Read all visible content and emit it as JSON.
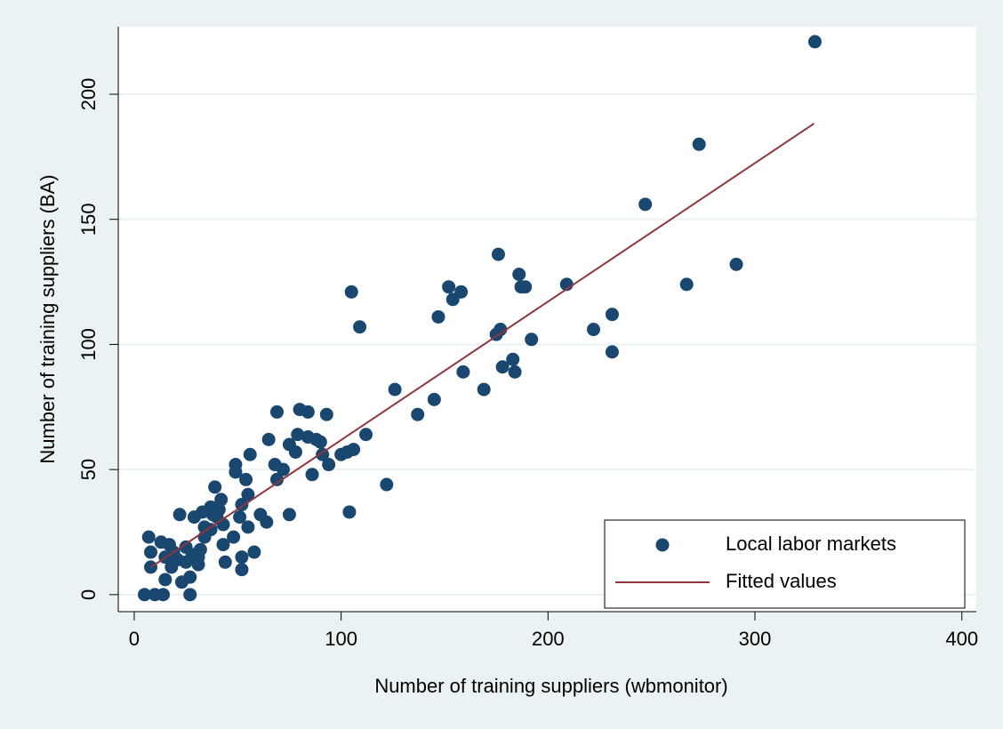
{
  "chart_data": {
    "type": "scatter",
    "x_label": "Number of training suppliers (wbmonitor)",
    "y_label": "Number of training suppliers (BA)",
    "xlim": [
      -7.7,
      407
    ],
    "ylim": [
      -6.8,
      227
    ],
    "xticks": [
      0,
      100,
      200,
      300,
      400
    ],
    "yticks": [
      0,
      50,
      100,
      150,
      200
    ],
    "grid": true,
    "legend": "bottom-right",
    "series": [
      {
        "name": "Local labor markets",
        "type": "scatter",
        "color": "#1a476f",
        "x": [
          5,
          10,
          14,
          27,
          7,
          8,
          8,
          13,
          15,
          17,
          19,
          22,
          23,
          25,
          27,
          29,
          31,
          32,
          33,
          37,
          39,
          40,
          42,
          43,
          43,
          44,
          49,
          49,
          48,
          51,
          52,
          52,
          52,
          54,
          55,
          55,
          56,
          58,
          61,
          64,
          65,
          68,
          69,
          69,
          72,
          75,
          75,
          78,
          79,
          80,
          84,
          84,
          86,
          88,
          90,
          91,
          93,
          94,
          100,
          104,
          103,
          106,
          105,
          109,
          112,
          122,
          126,
          137,
          145,
          147,
          152,
          154,
          158,
          159,
          169,
          176,
          175,
          177,
          178,
          183,
          184,
          186,
          187,
          189,
          192,
          209,
          222,
          231,
          231,
          247,
          273,
          267,
          291,
          329,
          21,
          18,
          15,
          28,
          34,
          37,
          38,
          34,
          25,
          31,
          41
        ],
        "values": [
          0,
          0,
          0,
          0,
          23,
          17,
          11,
          21,
          6,
          20,
          17,
          32,
          5,
          19,
          7,
          31,
          12,
          18,
          33,
          35,
          43,
          31,
          38,
          28,
          20,
          13,
          52,
          49,
          23,
          31,
          36,
          15,
          10,
          46,
          27,
          40,
          56,
          17,
          32,
          29,
          62,
          52,
          73,
          46,
          50,
          32,
          60,
          57,
          64,
          74,
          73,
          63,
          48,
          62,
          61,
          56,
          72,
          52,
          56,
          33,
          57,
          58,
          121,
          107,
          64,
          44,
          82,
          72,
          78,
          111,
          123,
          118,
          121,
          89,
          82,
          136,
          104,
          106,
          91,
          94,
          89,
          128,
          123,
          123,
          102,
          124,
          106,
          112,
          97,
          156,
          180,
          124,
          132,
          221,
          14,
          11,
          15,
          16,
          23,
          26,
          32,
          27,
          13,
          15,
          34
        ]
      },
      {
        "name": "Fitted values",
        "type": "line",
        "color": "#90353b",
        "x": [
          8.2,
          328.6
        ],
        "values": [
          11,
          188.3
        ]
      }
    ]
  }
}
